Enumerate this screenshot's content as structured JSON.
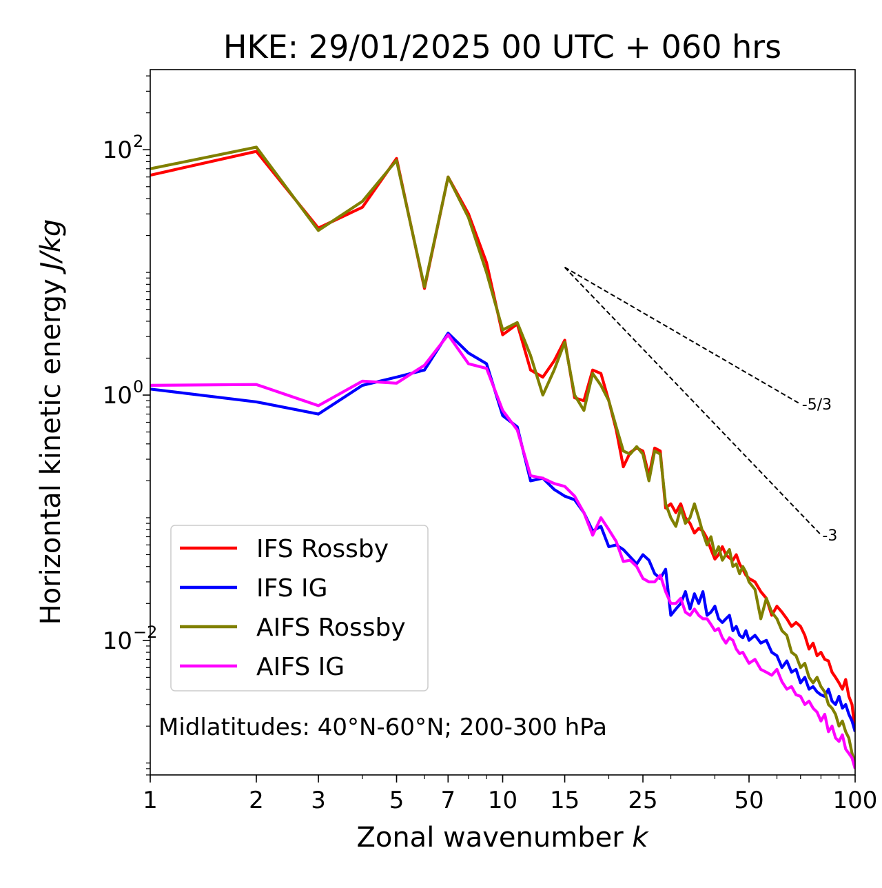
{
  "chart_data": {
    "type": "line",
    "title": "HKE: 29/01/2025 00 UTC + 060 hrs",
    "xlabel": "Zonal wavenumber",
    "xlabel_var": "k",
    "ylabel": "Horizontal kinetic energy",
    "ylabel_unit": "J/kg",
    "xscale": "log",
    "yscale": "log",
    "xlim": [
      1,
      100
    ],
    "ylim": [
      0.0008,
      450
    ],
    "x_ticks": [
      1,
      2,
      3,
      5,
      7,
      10,
      15,
      25,
      50,
      100
    ],
    "x_tick_labels": [
      "1",
      "2",
      "3",
      "5",
      "7",
      "10",
      "15",
      "25",
      "50",
      "100"
    ],
    "y_ticks": [
      {
        "value": 100,
        "base": "10",
        "exp": "2"
      },
      {
        "value": 1,
        "base": "10",
        "exp": "0"
      },
      {
        "value": 0.01,
        "base": "10",
        "exp": "−2"
      }
    ],
    "grid": false,
    "legend_position": "lower-left",
    "annotation": "Midlatitudes: 40°N-60°N; 200-300 hPa",
    "reference_lines": [
      {
        "label": "-5/3",
        "slope": -1.6667,
        "x0": 15,
        "y0": 11,
        "x1": 70
      },
      {
        "label": "-3",
        "slope": -3,
        "x0": 15,
        "y0": 11,
        "x1": 80
      }
    ],
    "series": [
      {
        "name": "IFS Rossby",
        "color": "#ff0000",
        "points": [
          [
            1,
            62
          ],
          [
            2,
            97
          ],
          [
            3,
            23
          ],
          [
            4,
            34
          ],
          [
            5,
            85
          ],
          [
            6,
            7.4
          ],
          [
            7,
            60
          ],
          [
            8,
            30
          ],
          [
            9,
            12
          ],
          [
            10,
            3.1
          ],
          [
            11,
            3.8
          ],
          [
            12,
            1.6
          ],
          [
            13,
            1.4
          ],
          [
            14,
            1.9
          ],
          [
            15,
            2.8
          ],
          [
            16,
            0.95
          ],
          [
            17,
            0.9
          ],
          [
            18,
            1.6
          ],
          [
            19,
            1.5
          ],
          [
            20,
            0.9
          ],
          [
            21,
            0.52
          ],
          [
            22,
            0.26
          ],
          [
            23,
            0.34
          ],
          [
            24,
            0.37
          ],
          [
            25,
            0.35
          ],
          [
            26,
            0.22
          ],
          [
            27,
            0.37
          ],
          [
            28,
            0.35
          ],
          [
            29,
            0.12
          ],
          [
            30,
            0.13
          ],
          [
            31,
            0.11
          ],
          [
            32,
            0.13
          ],
          [
            33,
            0.1
          ],
          [
            34,
            0.09
          ],
          [
            35,
            0.075
          ],
          [
            36,
            0.082
          ],
          [
            37,
            0.078
          ],
          [
            38,
            0.068
          ],
          [
            39,
            0.055
          ],
          [
            40,
            0.046
          ],
          [
            41,
            0.05
          ],
          [
            42,
            0.058
          ],
          [
            43,
            0.05
          ],
          [
            44,
            0.047
          ],
          [
            45,
            0.045
          ],
          [
            46,
            0.05
          ],
          [
            47,
            0.042
          ],
          [
            48,
            0.038
          ],
          [
            49,
            0.034
          ],
          [
            50,
            0.032
          ],
          [
            52,
            0.03
          ],
          [
            54,
            0.025
          ],
          [
            56,
            0.022
          ],
          [
            58,
            0.016
          ],
          [
            60,
            0.019
          ],
          [
            62,
            0.017
          ],
          [
            64,
            0.015
          ],
          [
            66,
            0.013
          ],
          [
            68,
            0.014
          ],
          [
            70,
            0.013
          ],
          [
            72,
            0.011
          ],
          [
            74,
            0.0085
          ],
          [
            76,
            0.0095
          ],
          [
            78,
            0.0075
          ],
          [
            80,
            0.008
          ],
          [
            82,
            0.007
          ],
          [
            84,
            0.0068
          ],
          [
            86,
            0.0055
          ],
          [
            88,
            0.005
          ],
          [
            90,
            0.0045
          ],
          [
            92,
            0.004
          ],
          [
            94,
            0.0048
          ],
          [
            96,
            0.0035
          ],
          [
            98,
            0.003
          ],
          [
            100,
            0.0018
          ]
        ]
      },
      {
        "name": "IFS IG",
        "color": "#0000ff",
        "points": [
          [
            1,
            1.12
          ],
          [
            2,
            0.88
          ],
          [
            3,
            0.7
          ],
          [
            4,
            1.2
          ],
          [
            5,
            1.4
          ],
          [
            6,
            1.6
          ],
          [
            7,
            3.2
          ],
          [
            8,
            2.2
          ],
          [
            9,
            1.8
          ],
          [
            10,
            0.68
          ],
          [
            11,
            0.55
          ],
          [
            12,
            0.2
          ],
          [
            13,
            0.21
          ],
          [
            14,
            0.17
          ],
          [
            15,
            0.15
          ],
          [
            16,
            0.14
          ],
          [
            17,
            0.11
          ],
          [
            18,
            0.078
          ],
          [
            19,
            0.085
          ],
          [
            20,
            0.058
          ],
          [
            21,
            0.06
          ],
          [
            22,
            0.055
          ],
          [
            23,
            0.048
          ],
          [
            24,
            0.042
          ],
          [
            25,
            0.05
          ],
          [
            26,
            0.045
          ],
          [
            27,
            0.035
          ],
          [
            28,
            0.032
          ],
          [
            29,
            0.038
          ],
          [
            30,
            0.016
          ],
          [
            31,
            0.018
          ],
          [
            32,
            0.02
          ],
          [
            33,
            0.025
          ],
          [
            34,
            0.018
          ],
          [
            35,
            0.024
          ],
          [
            36,
            0.02
          ],
          [
            37,
            0.025
          ],
          [
            38,
            0.016
          ],
          [
            39,
            0.017
          ],
          [
            40,
            0.019
          ],
          [
            41,
            0.015
          ],
          [
            42,
            0.014
          ],
          [
            43,
            0.015
          ],
          [
            44,
            0.016
          ],
          [
            45,
            0.012
          ],
          [
            46,
            0.013
          ],
          [
            47,
            0.011
          ],
          [
            48,
            0.0105
          ],
          [
            49,
            0.012
          ],
          [
            50,
            0.01
          ],
          [
            52,
            0.011
          ],
          [
            54,
            0.0095
          ],
          [
            56,
            0.01
          ],
          [
            58,
            0.008
          ],
          [
            60,
            0.0075
          ],
          [
            62,
            0.006
          ],
          [
            64,
            0.0068
          ],
          [
            66,
            0.0055
          ],
          [
            68,
            0.0058
          ],
          [
            70,
            0.0045
          ],
          [
            72,
            0.005
          ],
          [
            74,
            0.004
          ],
          [
            76,
            0.0042
          ],
          [
            78,
            0.0038
          ],
          [
            80,
            0.0036
          ],
          [
            82,
            0.0035
          ],
          [
            84,
            0.004
          ],
          [
            86,
            0.0032
          ],
          [
            88,
            0.003
          ],
          [
            90,
            0.0035
          ],
          [
            92,
            0.0028
          ],
          [
            94,
            0.003
          ],
          [
            96,
            0.0025
          ],
          [
            98,
            0.0022
          ],
          [
            100,
            0.0018
          ]
        ]
      },
      {
        "name": "AIFS Rossby",
        "color": "#808000",
        "points": [
          [
            1,
            70
          ],
          [
            2,
            105
          ],
          [
            3,
            22
          ],
          [
            4,
            38
          ],
          [
            5,
            82
          ],
          [
            6,
            7.6
          ],
          [
            7,
            60
          ],
          [
            8,
            28
          ],
          [
            9,
            10
          ],
          [
            10,
            3.4
          ],
          [
            11,
            3.9
          ],
          [
            12,
            2.1
          ],
          [
            13,
            1.0
          ],
          [
            14,
            1.6
          ],
          [
            15,
            2.7
          ],
          [
            16,
            1.0
          ],
          [
            17,
            0.75
          ],
          [
            18,
            1.5
          ],
          [
            19,
            1.2
          ],
          [
            20,
            0.9
          ],
          [
            21,
            0.55
          ],
          [
            22,
            0.35
          ],
          [
            23,
            0.33
          ],
          [
            24,
            0.38
          ],
          [
            25,
            0.33
          ],
          [
            26,
            0.2
          ],
          [
            27,
            0.35
          ],
          [
            28,
            0.33
          ],
          [
            29,
            0.13
          ],
          [
            30,
            0.1
          ],
          [
            31,
            0.085
          ],
          [
            32,
            0.12
          ],
          [
            33,
            0.09
          ],
          [
            34,
            0.1
          ],
          [
            35,
            0.13
          ],
          [
            36,
            0.1
          ],
          [
            37,
            0.075
          ],
          [
            38,
            0.06
          ],
          [
            39,
            0.07
          ],
          [
            40,
            0.05
          ],
          [
            41,
            0.058
          ],
          [
            42,
            0.045
          ],
          [
            43,
            0.05
          ],
          [
            44,
            0.055
          ],
          [
            45,
            0.04
          ],
          [
            46,
            0.042
          ],
          [
            47,
            0.035
          ],
          [
            48,
            0.04
          ],
          [
            49,
            0.036
          ],
          [
            50,
            0.03
          ],
          [
            52,
            0.026
          ],
          [
            54,
            0.015
          ],
          [
            56,
            0.022
          ],
          [
            58,
            0.017
          ],
          [
            60,
            0.015
          ],
          [
            62,
            0.012
          ],
          [
            64,
            0.011
          ],
          [
            66,
            0.008
          ],
          [
            68,
            0.0075
          ],
          [
            70,
            0.006
          ],
          [
            72,
            0.0065
          ],
          [
            74,
            0.005
          ],
          [
            76,
            0.0045
          ],
          [
            78,
            0.005
          ],
          [
            80,
            0.0042
          ],
          [
            82,
            0.0038
          ],
          [
            84,
            0.003
          ],
          [
            86,
            0.0028
          ],
          [
            88,
            0.0025
          ],
          [
            90,
            0.002
          ],
          [
            92,
            0.0022
          ],
          [
            94,
            0.0018
          ],
          [
            96,
            0.0016
          ],
          [
            98,
            0.0012
          ],
          [
            100,
            0.001
          ]
        ]
      },
      {
        "name": "AIFS IG",
        "color": "#ff00ff",
        "points": [
          [
            1,
            1.2
          ],
          [
            2,
            1.22
          ],
          [
            3,
            0.82
          ],
          [
            4,
            1.3
          ],
          [
            5,
            1.25
          ],
          [
            6,
            1.75
          ],
          [
            7,
            3.1
          ],
          [
            8,
            1.8
          ],
          [
            9,
            1.65
          ],
          [
            10,
            0.75
          ],
          [
            11,
            0.52
          ],
          [
            12,
            0.22
          ],
          [
            13,
            0.21
          ],
          [
            14,
            0.19
          ],
          [
            15,
            0.18
          ],
          [
            16,
            0.15
          ],
          [
            17,
            0.11
          ],
          [
            18,
            0.072
          ],
          [
            19,
            0.1
          ],
          [
            20,
            0.08
          ],
          [
            21,
            0.064
          ],
          [
            22,
            0.044
          ],
          [
            23,
            0.045
          ],
          [
            24,
            0.04
          ],
          [
            25,
            0.032
          ],
          [
            26,
            0.03
          ],
          [
            27,
            0.03
          ],
          [
            28,
            0.034
          ],
          [
            29,
            0.025
          ],
          [
            30,
            0.02
          ],
          [
            31,
            0.02
          ],
          [
            32,
            0.022
          ],
          [
            33,
            0.017
          ],
          [
            34,
            0.016
          ],
          [
            35,
            0.018
          ],
          [
            36,
            0.016
          ],
          [
            37,
            0.015
          ],
          [
            38,
            0.015
          ],
          [
            39,
            0.0135
          ],
          [
            40,
            0.012
          ],
          [
            41,
            0.0125
          ],
          [
            42,
            0.0105
          ],
          [
            43,
            0.0095
          ],
          [
            44,
            0.0105
          ],
          [
            45,
            0.01
          ],
          [
            46,
            0.0085
          ],
          [
            47,
            0.0078
          ],
          [
            48,
            0.008
          ],
          [
            49,
            0.0072
          ],
          [
            50,
            0.0065
          ],
          [
            52,
            0.007
          ],
          [
            54,
            0.0058
          ],
          [
            56,
            0.0055
          ],
          [
            58,
            0.0052
          ],
          [
            60,
            0.0058
          ],
          [
            62,
            0.0046
          ],
          [
            64,
            0.004
          ],
          [
            66,
            0.0042
          ],
          [
            68,
            0.0036
          ],
          [
            70,
            0.0035
          ],
          [
            72,
            0.003
          ],
          [
            74,
            0.0032
          ],
          [
            76,
            0.0028
          ],
          [
            78,
            0.0026
          ],
          [
            80,
            0.0022
          ],
          [
            82,
            0.0025
          ],
          [
            84,
            0.0018
          ],
          [
            86,
            0.002
          ],
          [
            88,
            0.0016
          ],
          [
            90,
            0.0015
          ],
          [
            92,
            0.0017
          ],
          [
            94,
            0.0013
          ],
          [
            96,
            0.0012
          ],
          [
            98,
            0.0011
          ],
          [
            100,
            0.0009
          ]
        ]
      }
    ]
  }
}
